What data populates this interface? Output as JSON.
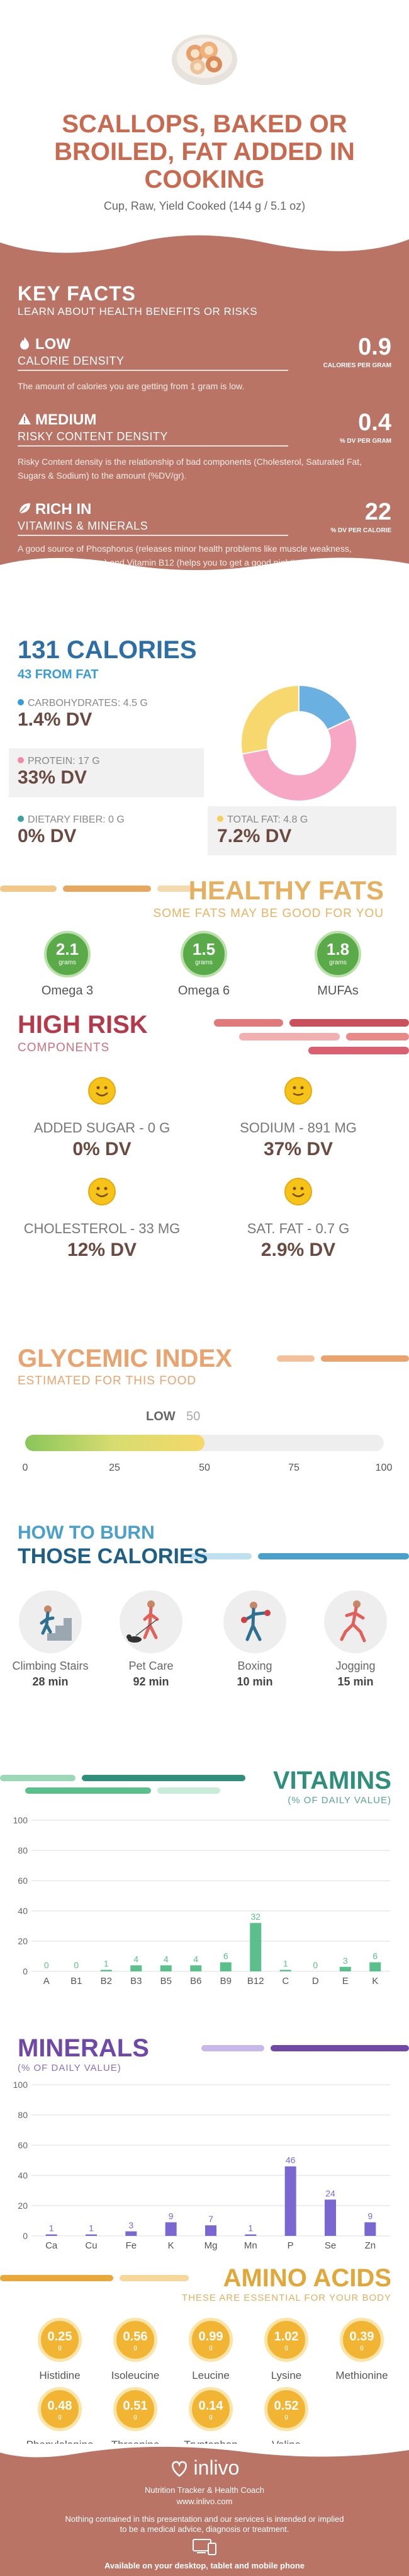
{
  "header": {
    "title_lines": [
      "SCALLOPS, BAKED OR",
      "BROILED, FAT ADDED IN",
      "COOKING"
    ],
    "serving": "Cup, Raw, Yield Cooked (144 g / 5.1 oz)"
  },
  "key_facts": {
    "title": "KEY FACTS",
    "subtitle": "LEARN ABOUT HEALTH BENEFITS OR RISKS",
    "rows": [
      {
        "level": "LOW",
        "category": "CALORIE DENSITY",
        "value": "0.9",
        "value_label": "CALORIES PER GRAM",
        "desc": "The amount of calories you are getting from 1 gram is low."
      },
      {
        "level": "MEDIUM",
        "category": "RISKY CONTENT DENSITY",
        "value": "0.4",
        "value_label": "% DV PER GRAM",
        "desc": "Risky Content density is the relationship of bad components (Cholesterol, Saturated Fat, Sugars & Sodium) to the amount (%DV/gr)."
      },
      {
        "level": "RICH IN",
        "category": "VITAMINS & MINERALS",
        "value": "22",
        "value_label": "% DV PER CALORIE",
        "desc": "A good source of Phosphorus (releases minor health problems like muscle weakness, numbness and fatigue) and Vitamin B12 (helps you to get a good night's sleep)."
      }
    ]
  },
  "calories": {
    "title": "131 CALORIES",
    "from_fat": "43 FROM FAT",
    "macros": [
      {
        "label": "CARBOHYDRATES: 4.5 g",
        "value": "1.4% DV",
        "color": "#3a9bd5"
      },
      {
        "label": "PROTEIN: 17 g",
        "value": "33% DV",
        "color": "#f28aa8"
      },
      {
        "label": "DIETARY FIBER: 0 g",
        "value": "0% DV",
        "color": "#3aa0a0"
      },
      {
        "label": "TOTAL FAT: 4.8 g",
        "value": "7.2% DV",
        "color": "#f4cf5a"
      }
    ],
    "donut": [
      {
        "name": "carbohydrates",
        "value": 18,
        "color": "#6ab0e0"
      },
      {
        "name": "protein",
        "value": 54,
        "color": "#f7a6c3"
      },
      {
        "name": "fat",
        "value": 28,
        "color": "#f6d86e"
      }
    ]
  },
  "healthy_fats": {
    "title": "HEALTHY FATS",
    "subtitle": "SOME FATS MAY BE GOOD FOR YOU",
    "items": [
      {
        "name": "Omega 3",
        "value": "2.1",
        "unit": "grams"
      },
      {
        "name": "Omega 6",
        "value": "1.5",
        "unit": "grams"
      },
      {
        "name": "MUFAs",
        "value": "1.8",
        "unit": "grams"
      }
    ]
  },
  "high_risk": {
    "title": "HIGH RISK",
    "subtitle": "COMPONENTS",
    "items": [
      {
        "label": "ADDED SUGAR - 0 g",
        "value": "0% DV"
      },
      {
        "label": "SODIUM - 891 mg",
        "value": "37% DV"
      },
      {
        "label": "CHOLESTEROL - 33 mg",
        "value": "12% DV"
      },
      {
        "label": "SAT. FAT - 0.7 g",
        "value": "2.9% DV"
      }
    ]
  },
  "glycemic": {
    "title": "GLYCEMIC INDEX",
    "subtitle": "ESTIMATED FOR THIS FOOD",
    "level": "LOW",
    "value": "50",
    "fill_fraction": 0.5,
    "ticks": [
      "0",
      "25",
      "50",
      "75",
      "100"
    ]
  },
  "burn": {
    "title_line1": "HOW TO BURN",
    "title_line2": "THOSE CALORIES",
    "activities": [
      {
        "name": "Climbing Stairs",
        "minutes": "28 min",
        "icon": "stairs-icon"
      },
      {
        "name": "Pet Care",
        "minutes": "92 min",
        "icon": "dog-walk-icon"
      },
      {
        "name": "Boxing",
        "minutes": "10 min",
        "icon": "boxing-icon"
      },
      {
        "name": "Jogging",
        "minutes": "15 min",
        "icon": "jogging-icon"
      }
    ]
  },
  "vitamins": {
    "title": "VITAMINS",
    "subtitle": "(% OF DAILY VALUE)",
    "chart_data": {
      "type": "bar",
      "categories": [
        "A",
        "B1",
        "B2",
        "B3",
        "B5",
        "B6",
        "B9",
        "B12",
        "C",
        "D",
        "E",
        "K"
      ],
      "values": [
        0,
        0,
        1,
        4,
        4,
        4,
        6,
        32,
        1,
        0,
        3,
        6
      ],
      "ylim": [
        0,
        100
      ],
      "yticks": [
        "0",
        "20",
        "40",
        "60",
        "80",
        "100"
      ],
      "color": "#5abf8a"
    }
  },
  "minerals": {
    "title": "MINERALS",
    "subtitle": "(% OF DAILY VALUE)",
    "chart_data": {
      "type": "bar",
      "categories": [
        "Ca",
        "Cu",
        "Fe",
        "K",
        "Mg",
        "Mn",
        "P",
        "Se",
        "Zn"
      ],
      "values": [
        1,
        1,
        3,
        9,
        7,
        1,
        46,
        24,
        9
      ],
      "ylim": [
        0,
        100
      ],
      "yticks": [
        "0",
        "20",
        "40",
        "60",
        "80",
        "100"
      ],
      "color": "#7a68d0"
    }
  },
  "amino": {
    "title": "AMINO ACIDS",
    "subtitle": "THESE ARE ESSENTIAL FOR YOUR BODY",
    "items": [
      {
        "name": "Histidine",
        "value": "0.25",
        "unit": "g"
      },
      {
        "name": "Isoleucine",
        "value": "0.56",
        "unit": "g"
      },
      {
        "name": "Leucine",
        "value": "0.99",
        "unit": "g"
      },
      {
        "name": "Lysine",
        "value": "1.02",
        "unit": "g"
      },
      {
        "name": "Methionine",
        "value": "0.39",
        "unit": "g"
      },
      {
        "name": "Phenylalanine",
        "value": "0.48",
        "unit": "g"
      },
      {
        "name": "Threonine",
        "value": "0.51",
        "unit": "g"
      },
      {
        "name": "Tryptophan",
        "value": "0.14",
        "unit": "g"
      },
      {
        "name": "Valine",
        "value": "0.52",
        "unit": "g"
      }
    ]
  },
  "footer": {
    "brand": "inlivo",
    "tagline": "Nutrition Tracker & Health Coach",
    "url": "www.inlivo.com",
    "disclaimer_1": "Nothing contained in this presentation and our services is intended or implied",
    "disclaimer_2": "to be a medical advice, diagnosis or treatment.",
    "availability": "Available on your desktop, tablet and mobile phone"
  }
}
